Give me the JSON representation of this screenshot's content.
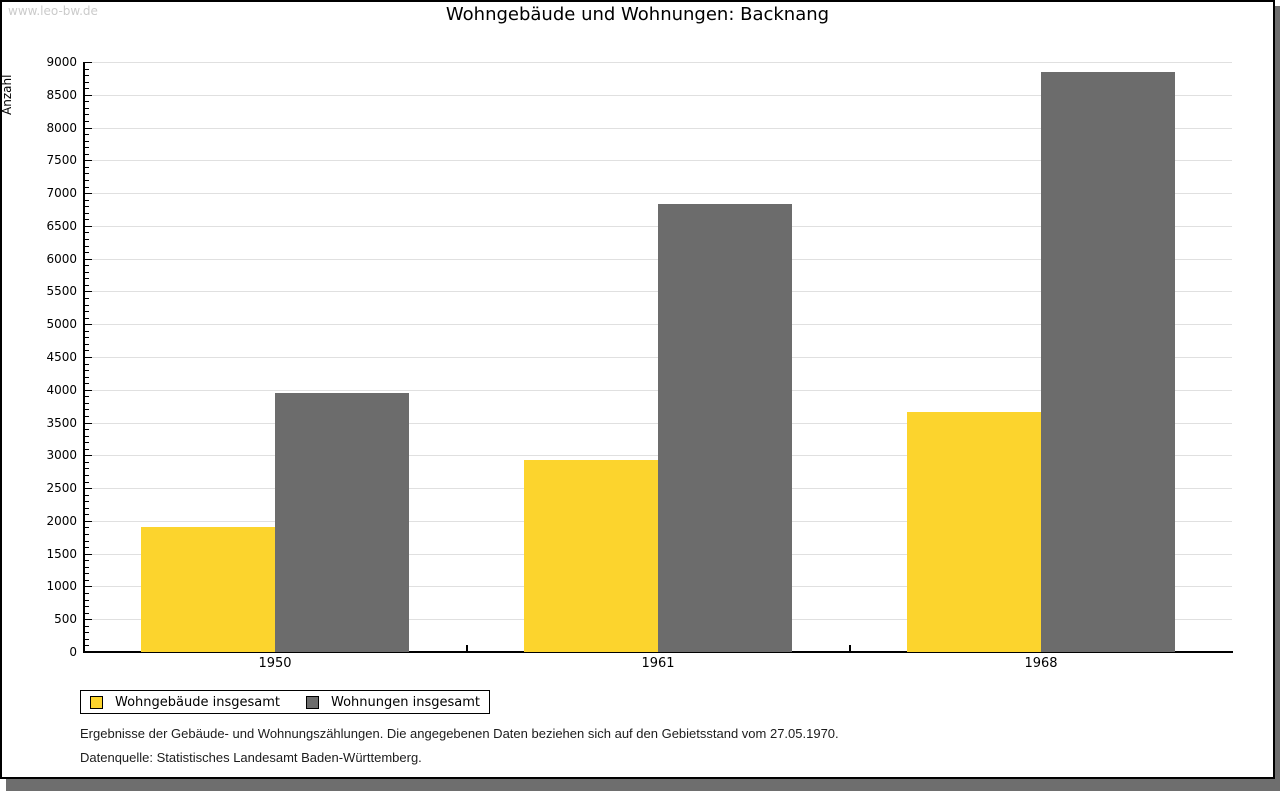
{
  "watermark": "www.leo-bw.de",
  "title": "Wohngebäude und Wohnungen: Backnang",
  "chart_data": {
    "type": "bar",
    "title": "Wohngebäude und Wohnungen: Backnang",
    "xlabel": "",
    "ylabel": "Anzahl",
    "categories": [
      "1950",
      "1961",
      "1968"
    ],
    "series": [
      {
        "name": "Wohngebäude insgesamt",
        "color": "#fcd42d",
        "values": [
          1900,
          2930,
          3655
        ]
      },
      {
        "name": "Wohnungen insgesamt",
        "color": "#6c6c6c",
        "values": [
          3950,
          6830,
          8845
        ]
      }
    ],
    "ylim": [
      0,
      9000
    ],
    "ytick_step": 500,
    "minor_tick_step": 100,
    "grid": "horizontal",
    "legend_position": "bottom-left"
  },
  "legend": {
    "items": [
      {
        "label": "Wohngebäude insgesamt",
        "color": "#fcd42d"
      },
      {
        "label": "Wohnungen insgesamt",
        "color": "#6c6c6c"
      }
    ]
  },
  "footer": {
    "line1": "Ergebnisse der Gebäude- und Wohnungszählungen. Die angegebenen Daten beziehen sich auf den Gebietsstand vom 27.05.1970.",
    "line2": "Datenquelle: Statistisches Landesamt Baden-Württemberg."
  }
}
